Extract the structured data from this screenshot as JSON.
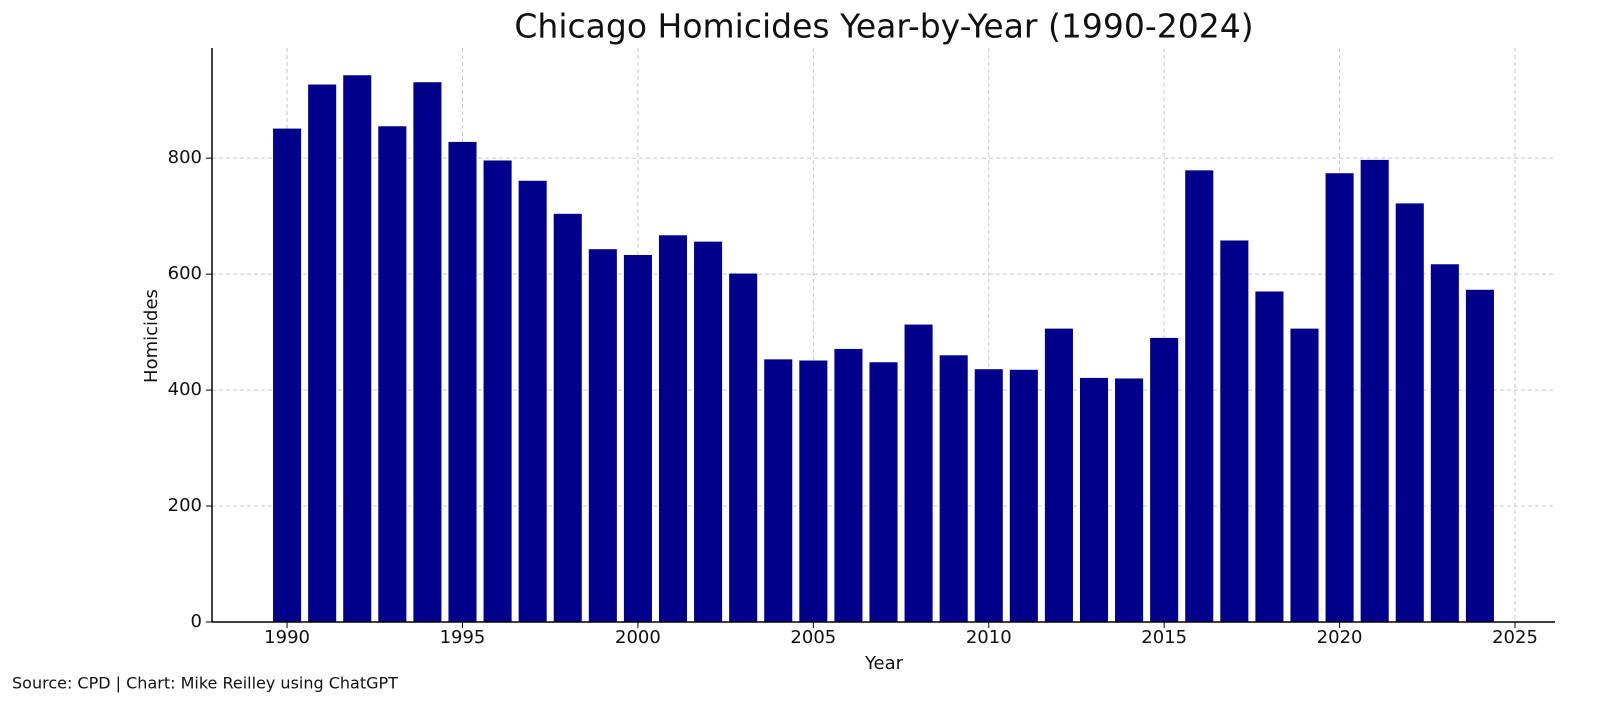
{
  "chart_data": {
    "type": "bar",
    "title": "Chicago Homicides Year-by-Year (1990-2024)",
    "xlabel": "Year",
    "ylabel": "Homicides",
    "source": "Source: CPD | Chart: Mike Reilley using ChatGPT",
    "x": [
      1990,
      1991,
      1992,
      1993,
      1994,
      1995,
      1996,
      1997,
      1998,
      1999,
      2000,
      2001,
      2002,
      2003,
      2004,
      2005,
      2006,
      2007,
      2008,
      2009,
      2010,
      2011,
      2012,
      2013,
      2014,
      2015,
      2016,
      2017,
      2018,
      2019,
      2020,
      2021,
      2022,
      2023,
      2024
    ],
    "values": [
      851,
      927,
      943,
      855,
      931,
      828,
      796,
      761,
      704,
      643,
      633,
      667,
      656,
      601,
      453,
      451,
      471,
      448,
      513,
      460,
      436,
      435,
      506,
      421,
      420,
      490,
      779,
      658,
      570,
      506,
      774,
      797,
      722,
      617,
      573
    ],
    "color": "#00008b",
    "xlim": [
      1987.86,
      2026.14
    ],
    "xticks": [
      1990,
      1995,
      2000,
      2005,
      2010,
      2015,
      2020,
      2025
    ],
    "ylim": [
      0,
      990
    ],
    "yticks": [
      0,
      200,
      400,
      600,
      800
    ],
    "grid": true
  }
}
